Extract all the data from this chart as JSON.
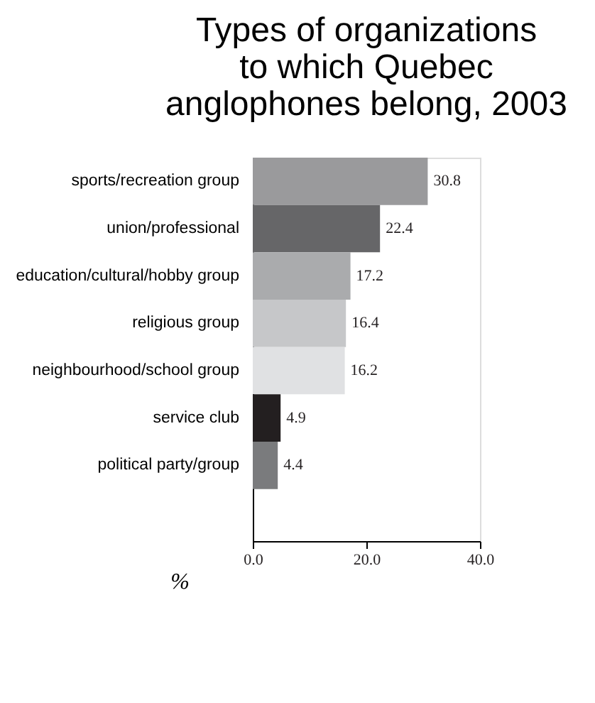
{
  "chart_data": {
    "type": "bar",
    "orientation": "horizontal",
    "title": [
      "Types of organizations",
      "to which Quebec",
      "anglophones belong, 2003"
    ],
    "categories": [
      "sports/recreation group",
      "union/professional",
      "education/cultural/hobby group",
      "religious group",
      "neighbourhood/school group",
      "service club",
      "political party/group"
    ],
    "values": [
      30.8,
      22.4,
      17.2,
      16.4,
      16.2,
      4.9,
      4.4
    ],
    "colors": [
      "#9a9a9c",
      "#666668",
      "#aaabad",
      "#c6c7c9",
      "#e0e1e3",
      "#231f20",
      "#7a7b7d"
    ],
    "xlabel": "%",
    "xlim": [
      0,
      40
    ],
    "xticks": [
      {
        "value": 0,
        "label": "0.0"
      },
      {
        "value": 20,
        "label": "20.0"
      },
      {
        "value": 40,
        "label": "40.0"
      }
    ],
    "data_labels": true
  }
}
